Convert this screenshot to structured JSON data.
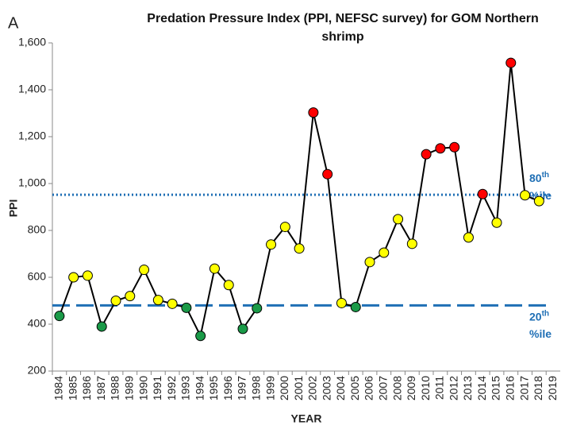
{
  "chart_data": {
    "type": "line",
    "panel_label": "A",
    "title": "Predation Pressure Index (PPI, NEFSC survey) for GOM Northern shrimp",
    "x_label": "YEAR",
    "y_label": "PPI",
    "categories": [
      "1984",
      "1985",
      "1986",
      "1987",
      "1988",
      "1989",
      "1990",
      "1991",
      "1992",
      "1993",
      "1994",
      "1995",
      "1996",
      "1997",
      "1998",
      "1999",
      "2000",
      "2001",
      "2002",
      "2003",
      "2004",
      "2005",
      "2006",
      "2007",
      "2008",
      "2009",
      "2010",
      "2011",
      "2012",
      "2013",
      "2014",
      "2015",
      "2016",
      "2017",
      "2018",
      "2019"
    ],
    "series": [
      {
        "name": "PPI",
        "color": "#000000",
        "values": [
          435,
          600,
          607,
          390,
          500,
          520,
          632,
          503,
          487,
          470,
          350,
          637,
          567,
          380,
          468,
          740,
          815,
          723,
          1303,
          1040,
          490,
          473,
          665,
          705,
          848,
          743,
          1125,
          1150,
          1155,
          770,
          955,
          833,
          1515,
          950,
          925,
          null
        ],
        "point_colors": [
          "#1a9a48",
          "#ffff00",
          "#ffff00",
          "#1a9a48",
          "#ffff00",
          "#ffff00",
          "#ffff00",
          "#ffff00",
          "#ffff00",
          "#1a9a48",
          "#1a9a48",
          "#ffff00",
          "#ffff00",
          "#1a9a48",
          "#1a9a48",
          "#ffff00",
          "#ffff00",
          "#ffff00",
          "#ff0000",
          "#ff0000",
          "#ffff00",
          "#1a9a48",
          "#ffff00",
          "#ffff00",
          "#ffff00",
          "#ffff00",
          "#ff0000",
          "#ff0000",
          "#ff0000",
          "#ffff00",
          "#ff0000",
          "#ffff00",
          "#ff0000",
          "#ffff00",
          "#ffff00",
          null
        ]
      }
    ],
    "reference_lines": [
      {
        "value": 952,
        "style": "dotted",
        "color": "#1f6fb5",
        "label_number": "80",
        "label_suffix": "th",
        "label_unit": "%ile"
      },
      {
        "value": 480,
        "style": "dashed",
        "color": "#1f6fb5",
        "label_number": "20",
        "label_suffix": "th",
        "label_unit": "%ile"
      }
    ],
    "ylim": [
      200,
      1600
    ],
    "yticks": [
      200,
      400,
      600,
      800,
      {
        "value": 1000,
        "label": "1,000"
      },
      {
        "value": 1200,
        "label": "1,200"
      },
      {
        "value": 1400,
        "label": "1,400"
      },
      {
        "value": 1600,
        "label": "1,600"
      }
    ],
    "grid": false
  }
}
